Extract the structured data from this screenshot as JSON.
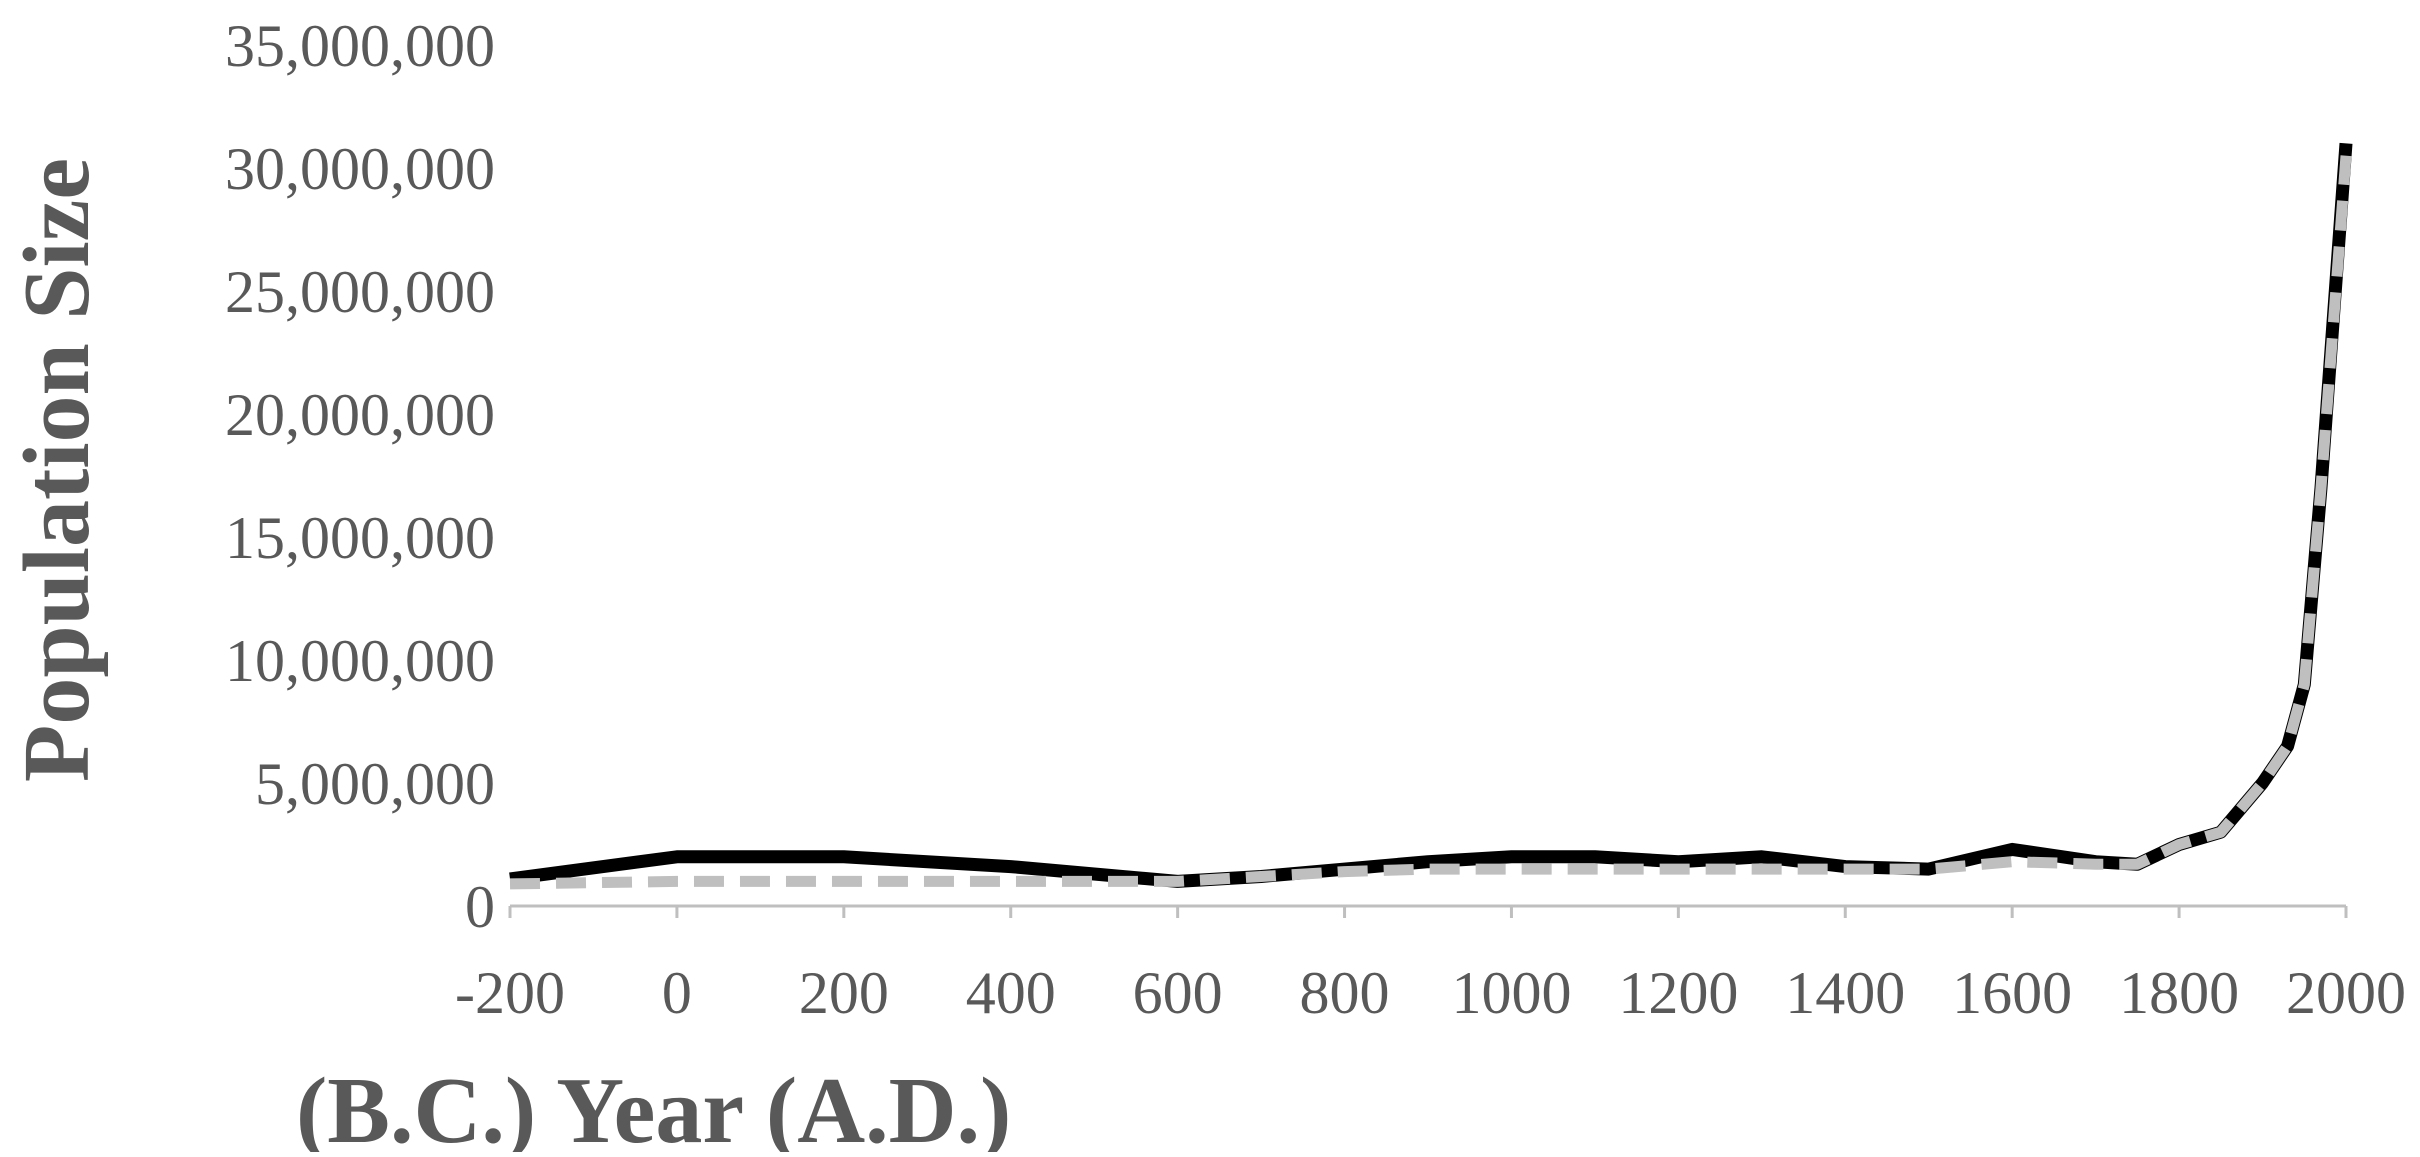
{
  "chart_data": {
    "type": "line",
    "title": "",
    "xlabel": "(B.C.) Year (A.D.)",
    "ylabel": "Population Size",
    "xlim": [
      -200,
      2000
    ],
    "ylim": [
      0,
      35000000
    ],
    "x_ticks": [
      "-200",
      "0",
      "200",
      "400",
      "600",
      "800",
      "1000",
      "1200",
      "1400",
      "1600",
      "1800",
      "2000"
    ],
    "y_ticks": [
      "0",
      "5,000,000",
      "10,000,000",
      "15,000,000",
      "20,000,000",
      "25,000,000",
      "30,000,000",
      "35,000,000"
    ],
    "grid": false,
    "legend": "none",
    "series": [
      {
        "color": "#000000",
        "line_style": "solid",
        "x": [
          -200,
          0,
          200,
          400,
          600,
          700,
          800,
          900,
          1000,
          1100,
          1200,
          1300,
          1400,
          1500,
          1600,
          1700,
          1750,
          1800,
          1850,
          1900,
          1930,
          1950,
          1970,
          2000
        ],
        "y": [
          1100000,
          2000000,
          2000000,
          1600000,
          1000000,
          1200000,
          1500000,
          1800000,
          2000000,
          2000000,
          1800000,
          2000000,
          1600000,
          1500000,
          2300000,
          1800000,
          1700000,
          2500000,
          3000000,
          5000000,
          6500000,
          9000000,
          17000000,
          31000000
        ]
      },
      {
        "color": "#bfbfbf",
        "line_style": "dashed",
        "x": [
          -200,
          0,
          200,
          400,
          600,
          700,
          800,
          900,
          1000,
          1100,
          1200,
          1300,
          1400,
          1500,
          1600,
          1700,
          1750,
          1800,
          1850,
          1900,
          1930,
          1950,
          1970,
          2000
        ],
        "y": [
          900000,
          1000000,
          1000000,
          1000000,
          1000000,
          1200000,
          1400000,
          1500000,
          1500000,
          1500000,
          1500000,
          1500000,
          1500000,
          1500000,
          1800000,
          1700000,
          1700000,
          2500000,
          3000000,
          5000000,
          6500000,
          9000000,
          17000000,
          30500000
        ]
      }
    ]
  }
}
